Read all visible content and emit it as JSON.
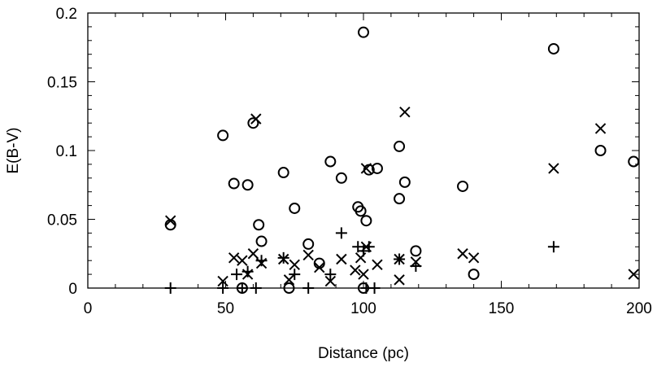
{
  "chart_data": {
    "type": "scatter",
    "title": "",
    "xlabel": "Distance (pc)",
    "ylabel": "E(B-V)",
    "xlim": [
      0,
      200
    ],
    "ylim": [
      0,
      0.2
    ],
    "x_ticks": [
      {
        "value": 0,
        "label": "0"
      },
      {
        "value": 50,
        "label": "50"
      },
      {
        "value": 100,
        "label": "100"
      },
      {
        "value": 150,
        "label": "150"
      },
      {
        "value": 200,
        "label": "200"
      }
    ],
    "y_ticks": [
      {
        "value": 0,
        "label": "0"
      },
      {
        "value": 0.05,
        "label": "0.05"
      },
      {
        "value": 0.1,
        "label": "0.1"
      },
      {
        "value": 0.15,
        "label": "0.15"
      },
      {
        "value": 0.2,
        "label": "0.2"
      }
    ],
    "x_minor_step": 10,
    "y_minor_step": 0.01,
    "grid": false,
    "legend": "none",
    "series": [
      {
        "marker": "circle",
        "points": [
          [
            30,
            0.046
          ],
          [
            49,
            0.111
          ],
          [
            53,
            0.076
          ],
          [
            56,
            0.0
          ],
          [
            58,
            0.075
          ],
          [
            60,
            0.12
          ],
          [
            62,
            0.046
          ],
          [
            63,
            0.034
          ],
          [
            71,
            0.084
          ],
          [
            73,
            0.0
          ],
          [
            75,
            0.058
          ],
          [
            80,
            0.032
          ],
          [
            84,
            0.018
          ],
          [
            88,
            0.092
          ],
          [
            92,
            0.08
          ],
          [
            98,
            0.059
          ],
          [
            99,
            0.056
          ],
          [
            100,
            0.186
          ],
          [
            100,
            0.0
          ],
          [
            101,
            0.049
          ],
          [
            102,
            0.086
          ],
          [
            105,
            0.087
          ],
          [
            113,
            0.103
          ],
          [
            113,
            0.065
          ],
          [
            115,
            0.077
          ],
          [
            119,
            0.027
          ],
          [
            136,
            0.074
          ],
          [
            140,
            0.01
          ],
          [
            169,
            0.174
          ],
          [
            186,
            0.1
          ],
          [
            198,
            0.092
          ]
        ]
      },
      {
        "marker": "cross",
        "points": [
          [
            30,
            0.049
          ],
          [
            49,
            0.005
          ],
          [
            53,
            0.022
          ],
          [
            56,
            0.02
          ],
          [
            58,
            0.01
          ],
          [
            60,
            0.025
          ],
          [
            61,
            0.123
          ],
          [
            63,
            0.018
          ],
          [
            71,
            0.021
          ],
          [
            73,
            0.006
          ],
          [
            75,
            0.017
          ],
          [
            80,
            0.024
          ],
          [
            84,
            0.015
          ],
          [
            88,
            0.005
          ],
          [
            92,
            0.021
          ],
          [
            97,
            0.013
          ],
          [
            99,
            0.022
          ],
          [
            100,
            0.01
          ],
          [
            101,
            0.03
          ],
          [
            101,
            0.087
          ],
          [
            105,
            0.017
          ],
          [
            113,
            0.021
          ],
          [
            113,
            0.006
          ],
          [
            115,
            0.128
          ],
          [
            119,
            0.019
          ],
          [
            136,
            0.025
          ],
          [
            140,
            0.022
          ],
          [
            169,
            0.087
          ],
          [
            186,
            0.116
          ],
          [
            198,
            0.01
          ]
        ]
      },
      {
        "marker": "plus",
        "points": [
          [
            30,
            0.0
          ],
          [
            49,
            0.0
          ],
          [
            54,
            0.01
          ],
          [
            56,
            0.0
          ],
          [
            58,
            0.012
          ],
          [
            61,
            0.0
          ],
          [
            63,
            0.02
          ],
          [
            71,
            0.022
          ],
          [
            75,
            0.01
          ],
          [
            80,
            0.0
          ],
          [
            88,
            0.01
          ],
          [
            92,
            0.04
          ],
          [
            98,
            0.03
          ],
          [
            100,
            0.027
          ],
          [
            101,
            0.0
          ],
          [
            102,
            0.03
          ],
          [
            104,
            0.0
          ],
          [
            113,
            0.021
          ],
          [
            119,
            0.016
          ],
          [
            169,
            0.03
          ]
        ]
      }
    ]
  }
}
